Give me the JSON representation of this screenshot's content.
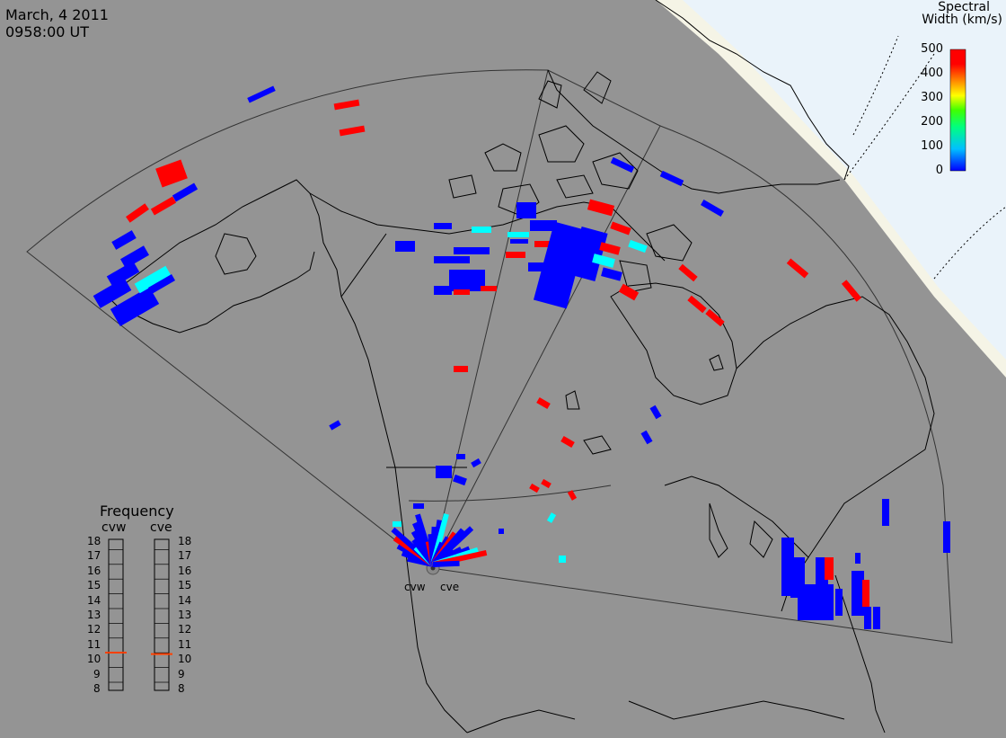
{
  "header": {
    "date": "March, 4 2011",
    "time": "0958:00 UT"
  },
  "colorbar": {
    "title_line1": "Spectral",
    "title_line2": "Width (km/s)",
    "ticks": [
      "500",
      "400",
      "300",
      "200",
      "100",
      "0"
    ]
  },
  "frequency_panel": {
    "title": "Frequency",
    "radars": [
      "cvw",
      "cve"
    ],
    "scale": [
      "18",
      "17",
      "16",
      "15",
      "14",
      "13",
      "12",
      "11",
      "10",
      "9",
      "8"
    ],
    "cvw_value": 10.5,
    "cve_value": 10.4
  },
  "sites": {
    "west": "cvw",
    "east": "cve"
  },
  "colors": {
    "background": "#949494",
    "land_line": "#000000",
    "north_cap": "#f5f4e6",
    "cap_inner": "#eaf3fa",
    "high_width": "#ff0000",
    "low_width": "#0000ff",
    "mid_width": "#00ffff"
  }
}
